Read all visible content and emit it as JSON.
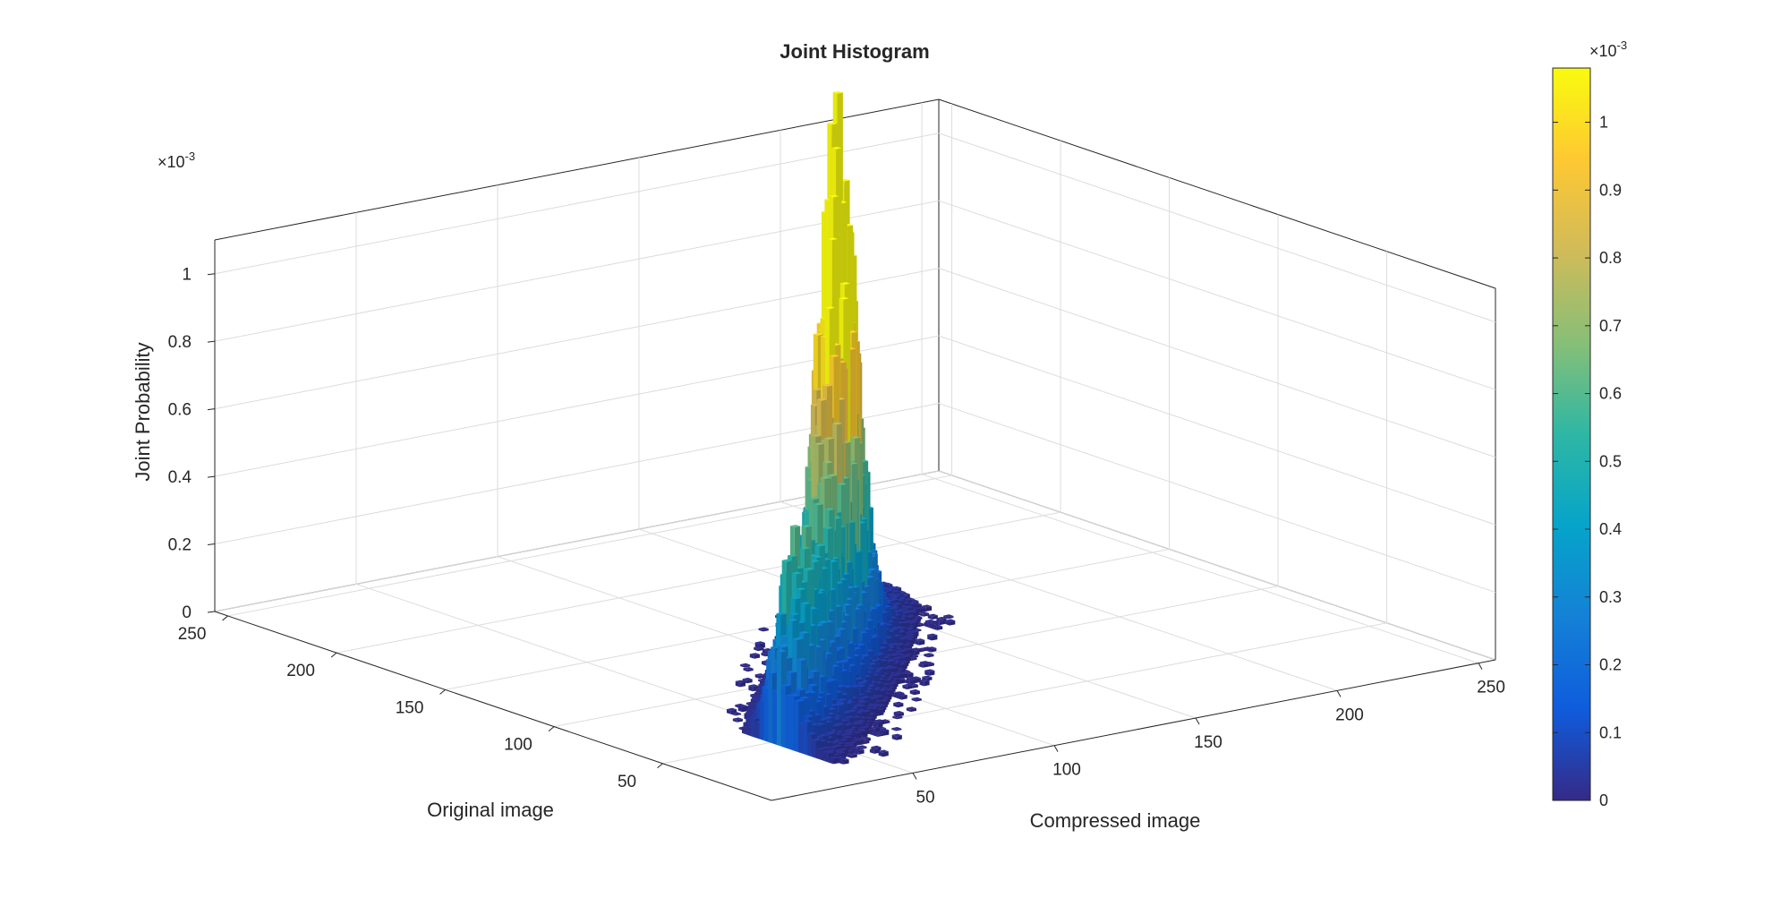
{
  "chart_data": {
    "type": "bar3d-histogram",
    "title": "Joint Histogram",
    "xlabel": "Compressed image",
    "ylabel": "Original image",
    "zlabel": "Joint Probability",
    "xlim": [
      0,
      256
    ],
    "ylim": [
      0,
      256
    ],
    "zlim": [
      0,
      0.0011
    ],
    "x_ticks": [
      "50",
      "100",
      "150",
      "200",
      "250"
    ],
    "y_ticks": [
      "50",
      "100",
      "150",
      "200",
      "250"
    ],
    "z_ticks": [
      "0",
      "0.2",
      "0.4",
      "0.6",
      "0.8",
      "1"
    ],
    "z_exponent": "×10",
    "z_exponent_power": "-3",
    "grid": true,
    "colormap": "parula",
    "colorbar": {
      "location": "right",
      "limits": [
        0,
        0.00108
      ],
      "ticks": [
        "0",
        "0.1",
        "0.2",
        "0.3",
        "0.4",
        "0.5",
        "0.6",
        "0.7",
        "0.8",
        "0.9",
        "1"
      ],
      "exponent": "×10",
      "exponent_power": "-3",
      "colors": [
        "#352a87",
        "#0f5cdd",
        "#1481d6",
        "#06a4ca",
        "#2eb7a4",
        "#87bf77",
        "#d1bb59",
        "#fec832",
        "#f9fb0e"
      ]
    },
    "distribution": {
      "description_values": "joint probability mass concentrated near the diagonal where original ≈ compressed",
      "peaks": [
        {
          "x": 102,
          "y": 104,
          "value": 0.00108
        },
        {
          "x": 118,
          "y": 121,
          "value": 0.00058
        },
        {
          "x": 52,
          "y": 56,
          "value": 0.00041
        },
        {
          "x": 80,
          "y": 80,
          "value": 0.00037
        }
      ],
      "x_range": [
        38,
        160
      ],
      "y_range": [
        18,
        195
      ]
    }
  }
}
